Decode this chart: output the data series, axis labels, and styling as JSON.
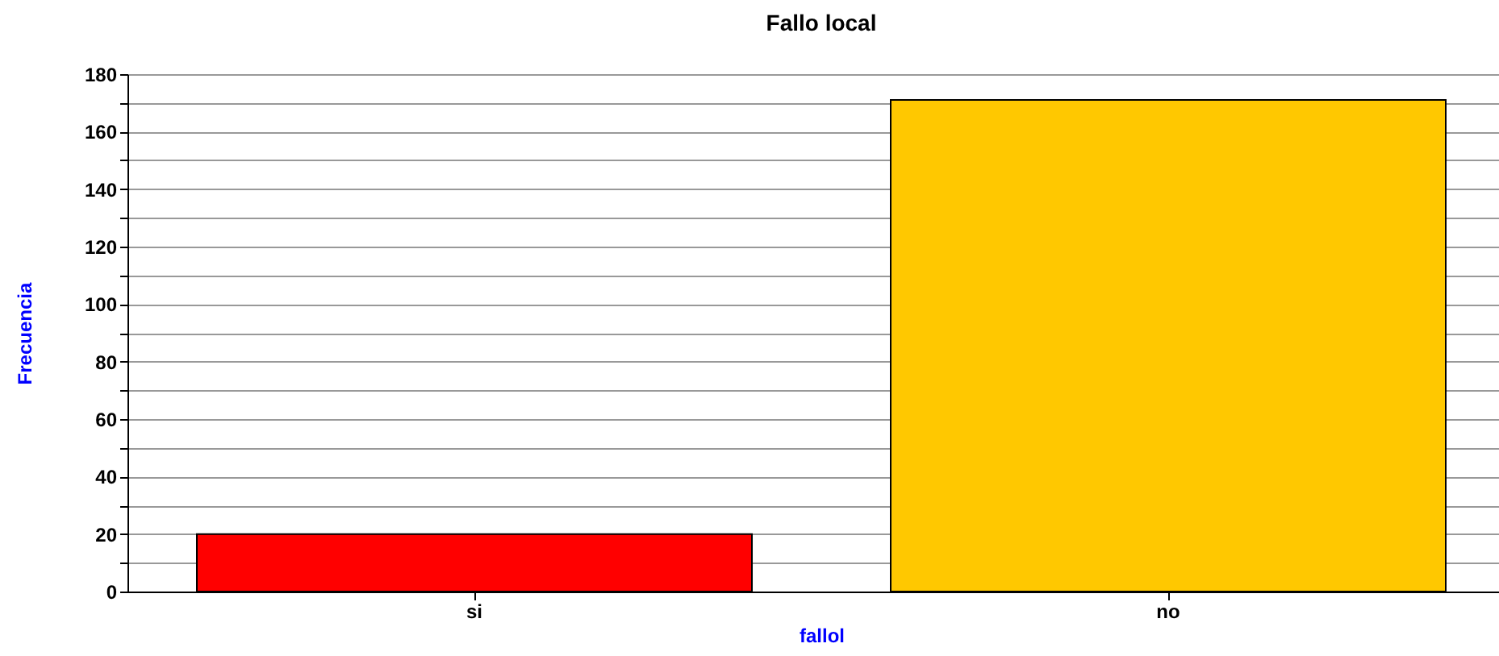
{
  "chart_data": {
    "type": "bar",
    "title": "Fallo local",
    "xlabel": "fallol",
    "ylabel": "Frecuencia",
    "categories": [
      "si",
      "no"
    ],
    "values": [
      20,
      171
    ],
    "colors": [
      "#ff0000",
      "#ffc800"
    ],
    "ylim": [
      0,
      180
    ],
    "yticks": [
      0,
      {
        "value": 10,
        "label": null
      },
      20,
      {
        "value": 30,
        "label": null
      },
      40,
      {
        "value": 50,
        "label": null
      },
      60,
      {
        "value": 70,
        "label": null
      },
      80,
      {
        "value": 90,
        "label": null
      },
      100,
      {
        "value": 110,
        "label": null
      },
      120,
      {
        "value": 130,
        "label": null
      },
      140,
      {
        "value": 150,
        "label": null
      },
      160,
      {
        "value": 170,
        "label": null
      },
      180
    ],
    "grid": "y"
  }
}
